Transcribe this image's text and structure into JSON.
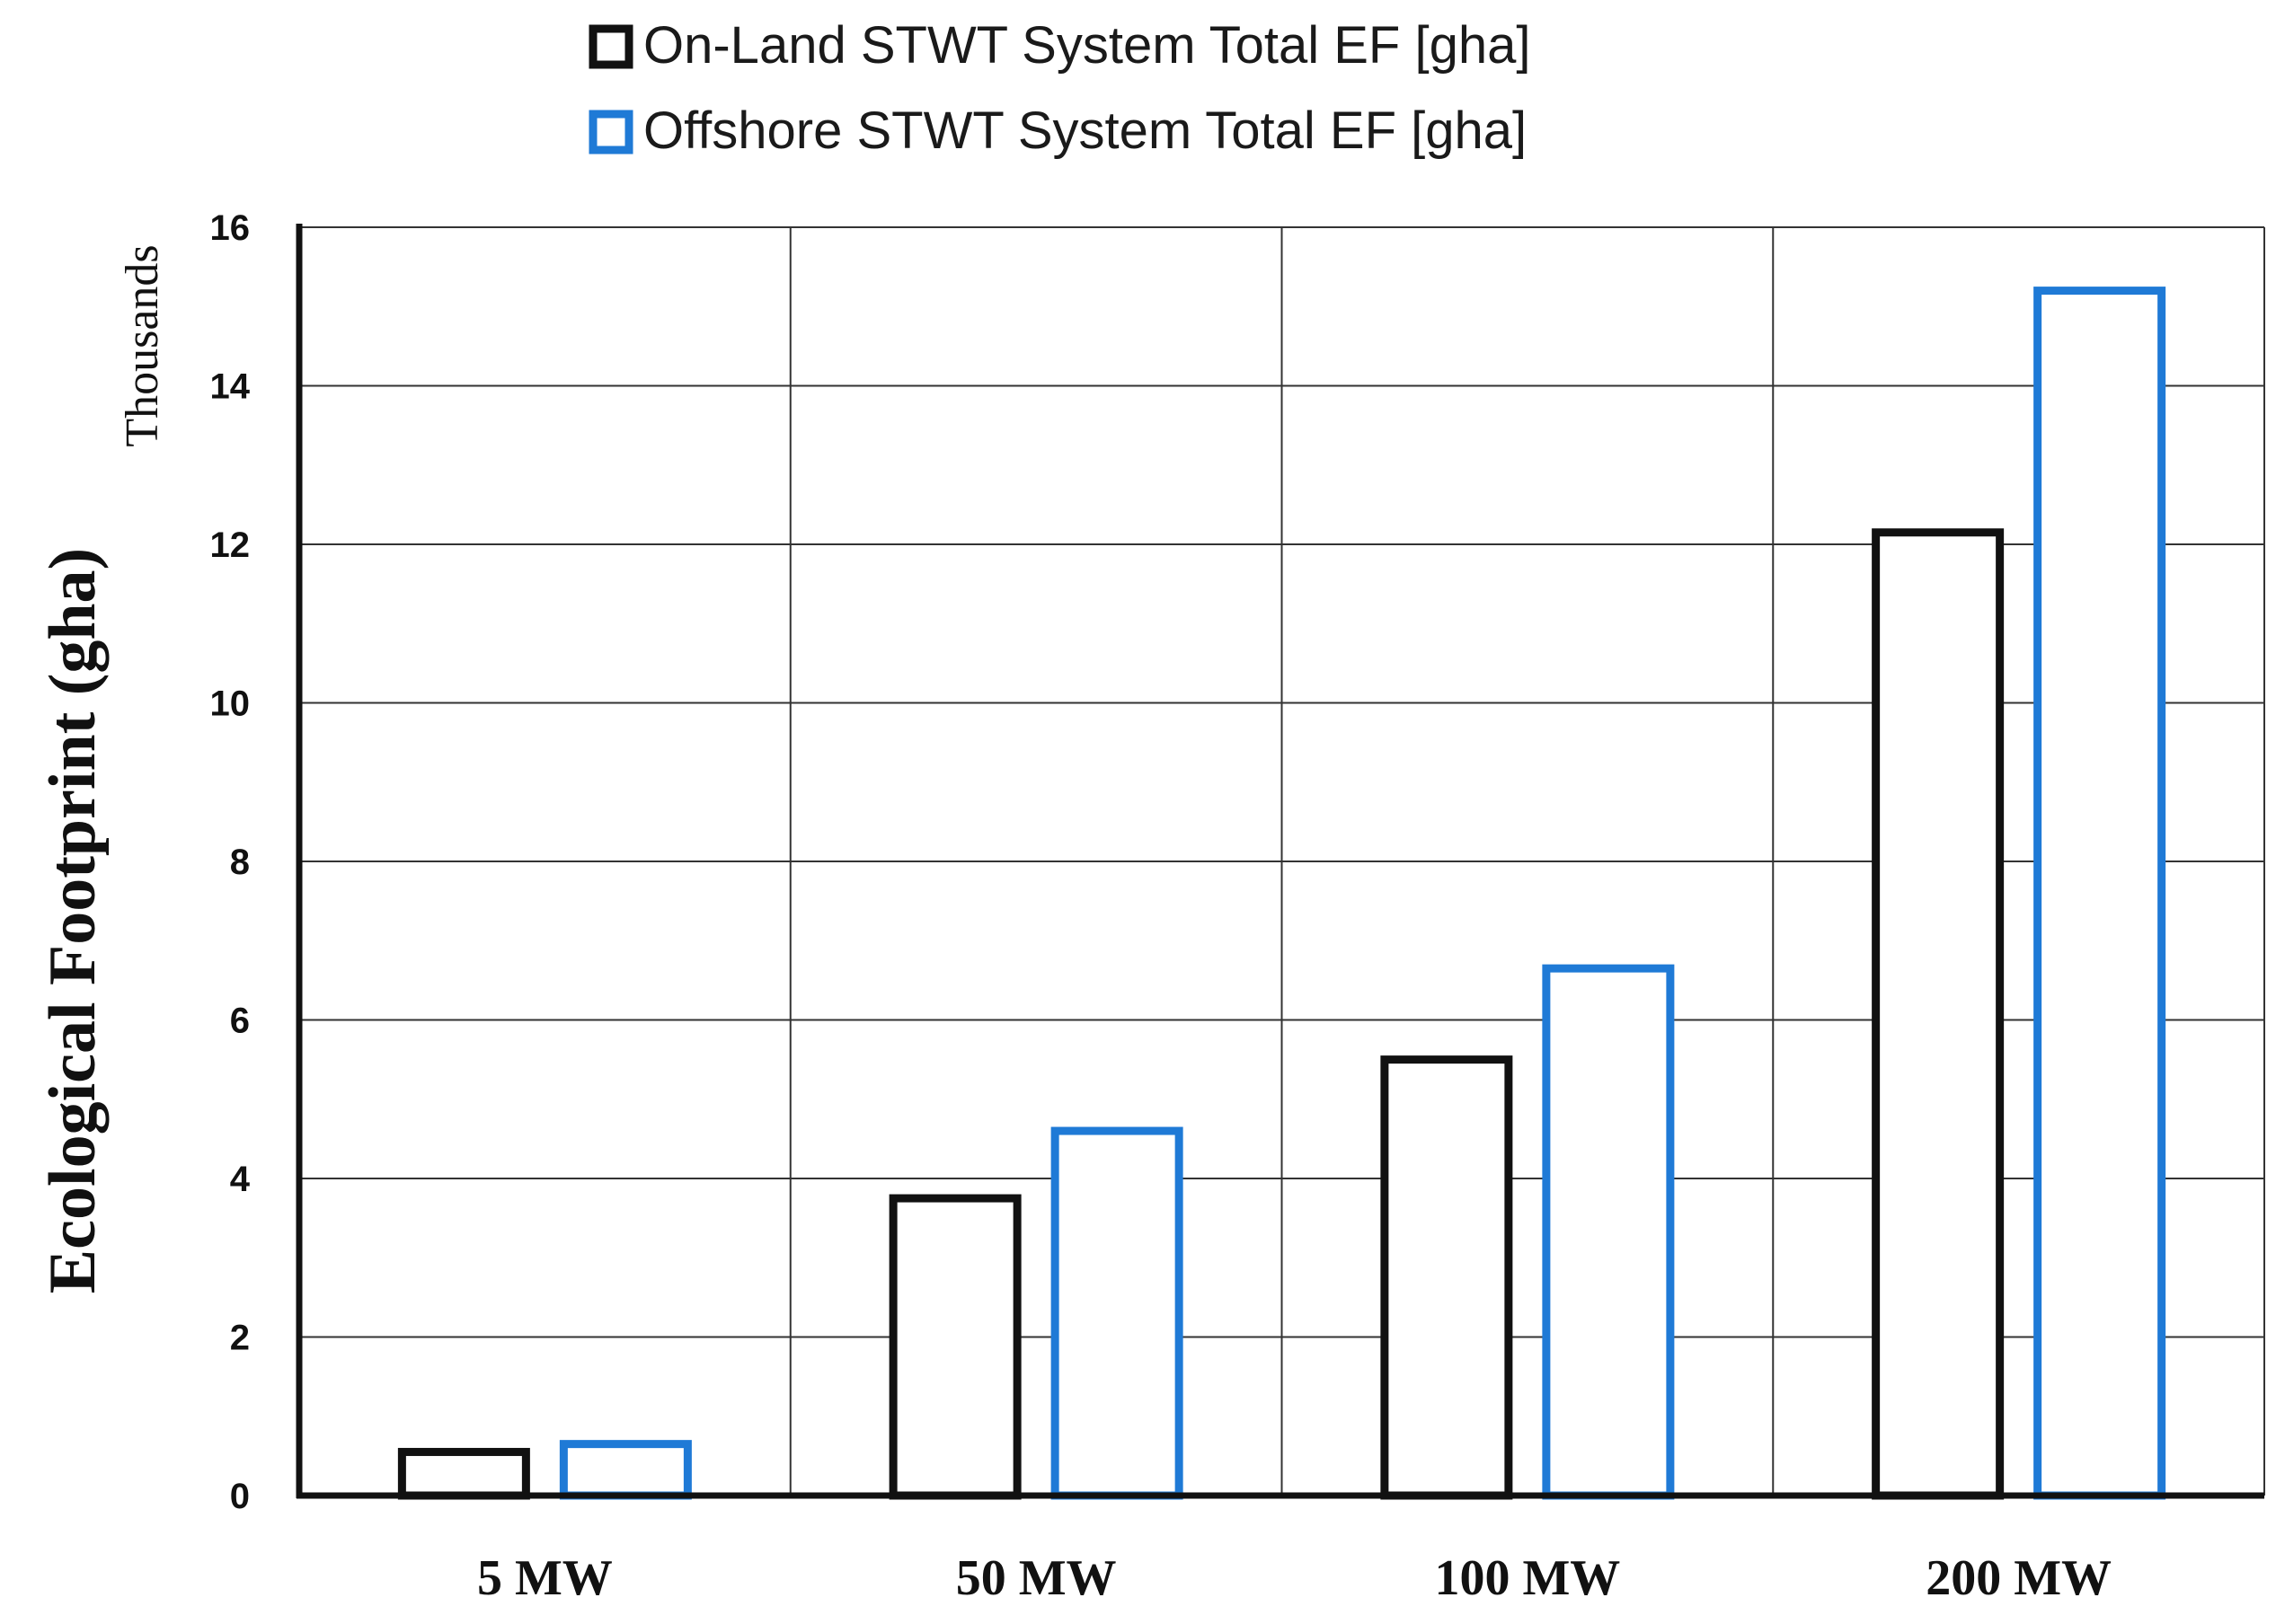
{
  "chart_data": {
    "type": "bar",
    "title": "",
    "xlabel": "",
    "ylabel": "Ecological Footprint (gha)",
    "yunits": "Thousands",
    "ylim": [
      0,
      16
    ],
    "yticks": [
      0,
      2,
      4,
      6,
      8,
      10,
      12,
      14,
      16
    ],
    "grid": true,
    "legend_position": "top-center",
    "categories": [
      "5 MW",
      "50 MW",
      "100 MW",
      "200 MW"
    ],
    "series": [
      {
        "name": "On-Land STWT System Total EF [gha]",
        "color": "#111111",
        "values": [
          0.55,
          3.75,
          5.5,
          12.15
        ]
      },
      {
        "name": "Offshore STWT System Total EF [gha]",
        "color": "#1f7ad6",
        "values": [
          0.65,
          4.6,
          6.65,
          15.2
        ]
      }
    ]
  }
}
